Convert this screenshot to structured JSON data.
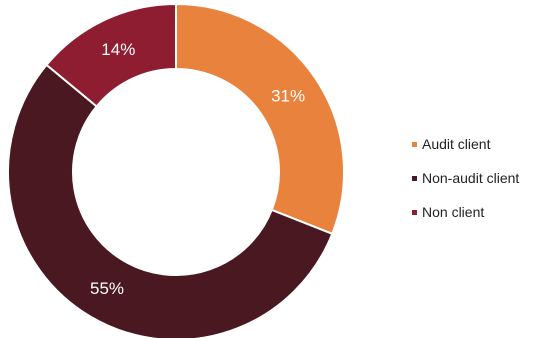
{
  "chart_data": {
    "type": "pie",
    "title": "",
    "donut": true,
    "categories": [
      "Audit client",
      "Non-audit client",
      "Non client"
    ],
    "values": [
      31,
      55,
      14
    ],
    "labels": [
      "31%",
      "55%",
      "14%"
    ],
    "colors": [
      "#e8823d",
      "#4a1820",
      "#8e1d31"
    ],
    "legend": {
      "placement": "right",
      "entries": [
        "Audit client",
        "Non-audit client",
        "Non client"
      ]
    }
  }
}
